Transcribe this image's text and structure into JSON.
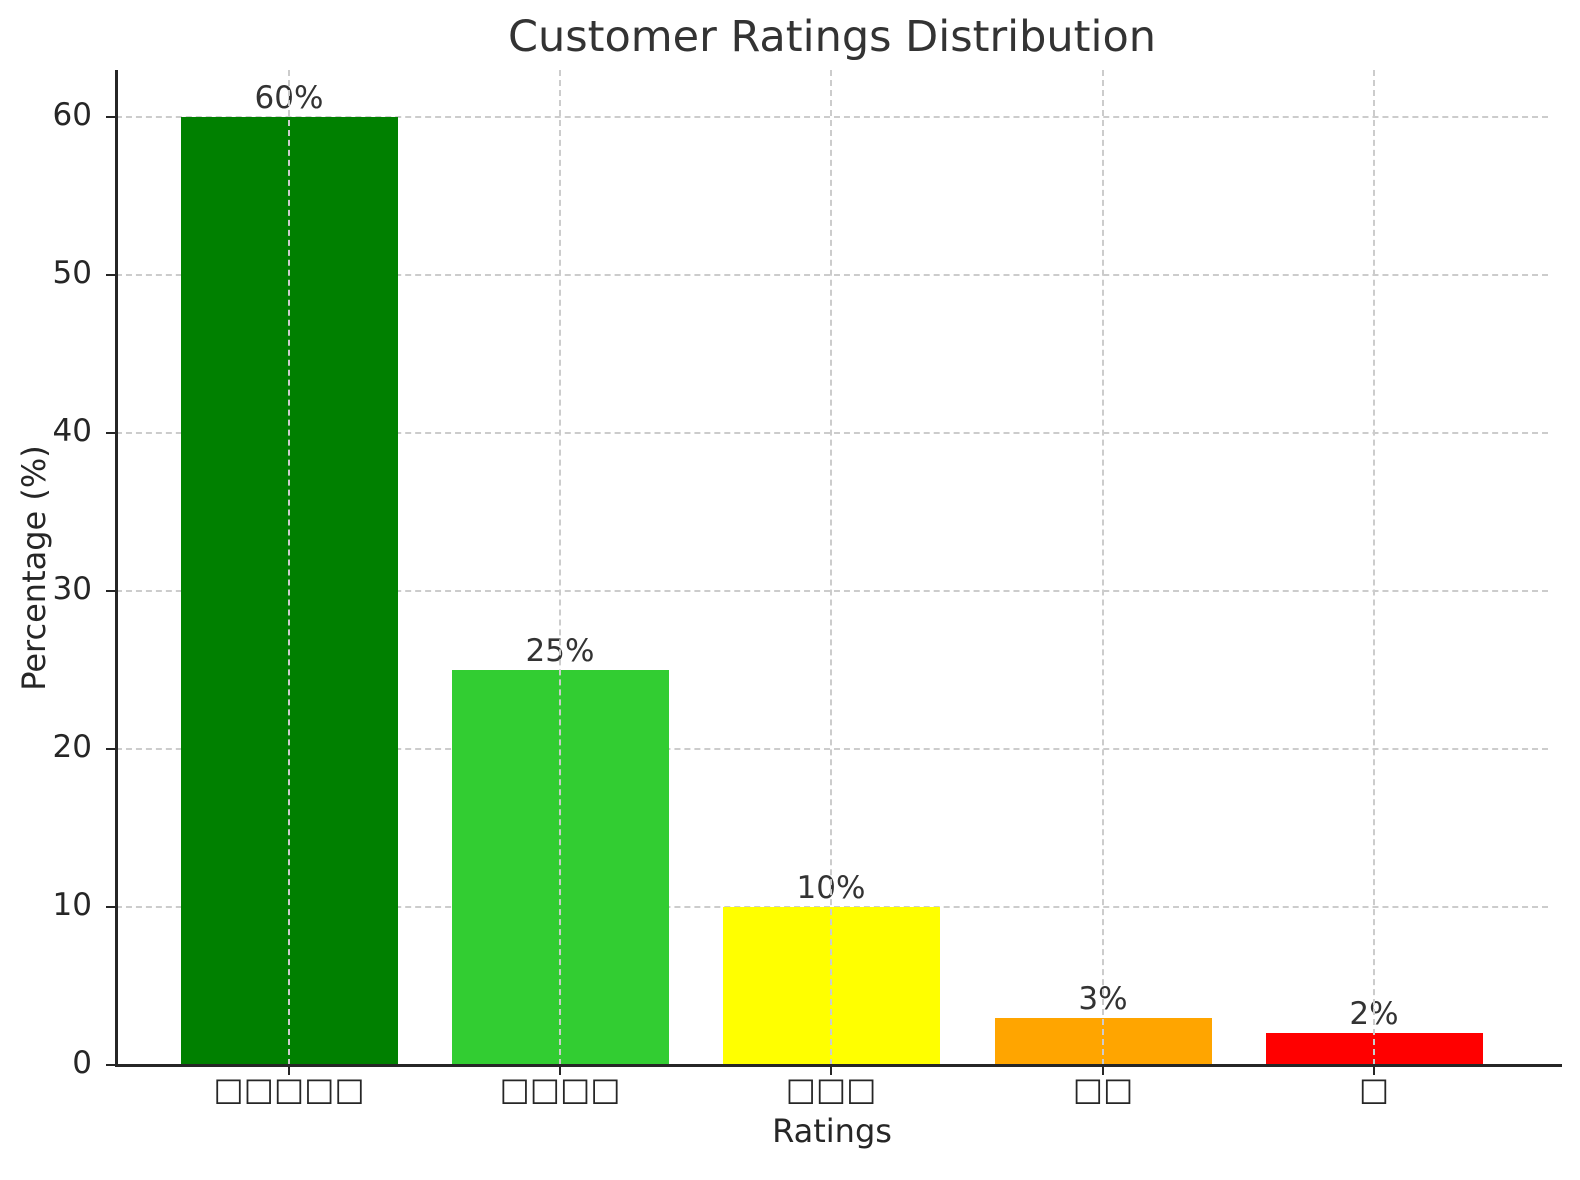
{
  "chart_data": {
    "type": "bar",
    "title": "Customer Ratings Distribution",
    "xlabel": "Ratings",
    "ylabel": "Percentage (%)",
    "categories": [
      "□□□□□",
      "□□□□",
      "□□□",
      "□□",
      "□"
    ],
    "category_note": "Tick labels render as missing-glyph boxes (5,4,3,2,1 glyphs — likely star characters)",
    "values": [
      60,
      25,
      10,
      3,
      2
    ],
    "value_labels": [
      "60%",
      "25%",
      "10%",
      "3%",
      "2%"
    ],
    "colors": [
      "#008000",
      "#32cd32",
      "#ffff00",
      "#ffa500",
      "#ff0000"
    ],
    "ylim": [
      0,
      63
    ],
    "yticks": [
      0,
      10,
      20,
      30,
      40,
      50,
      60
    ],
    "grid": true,
    "grid_style": "dashed",
    "legend": null
  }
}
